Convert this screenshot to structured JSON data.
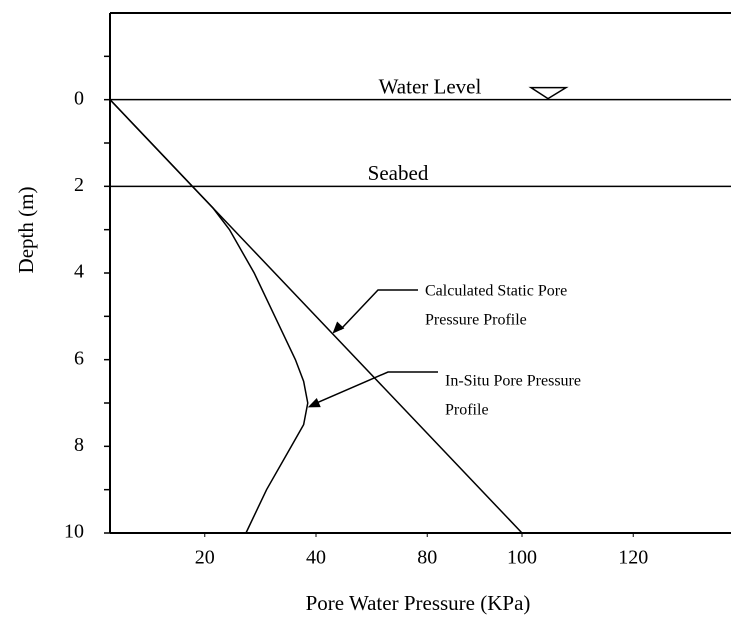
{
  "chart_data": {
    "type": "line",
    "xlabel": "Pore Water Pressure (KPa)",
    "ylabel": "Depth (m)",
    "xlim": [
      0,
      150
    ],
    "ylim": [
      -2,
      10
    ],
    "y_inverted": true,
    "xticks": [
      {
        "value": 23,
        "label": "20"
      },
      {
        "value": 50,
        "label": "40"
      },
      {
        "value": 77,
        "label": "80"
      },
      {
        "value": 100,
        "label": "100"
      },
      {
        "value": 127,
        "label": "120"
      }
    ],
    "yticks": [
      0,
      2,
      4,
      6,
      8,
      10
    ],
    "yminorticks": [
      -1,
      1,
      3,
      5,
      7,
      9
    ],
    "series": [
      {
        "name": "Calculated Static Pore Pressure Profile",
        "color": "#000000",
        "x": [
          0,
          100
        ],
        "values": [
          0,
          10
        ]
      },
      {
        "name": "In-Situ Pore Pressure Profile",
        "color": "#000000",
        "x": [
          0,
          20,
          25,
          29,
          35,
          40,
          45,
          47,
          48,
          47,
          44,
          38,
          33
        ],
        "values": [
          0,
          2,
          2.5,
          3,
          4,
          5,
          6,
          6.5,
          7,
          7.5,
          8,
          9,
          10
        ]
      }
    ],
    "levels": [
      {
        "label": "Water Level",
        "depth": 0
      },
      {
        "label": "Seabed",
        "depth": 2
      }
    ],
    "annotations": [
      {
        "lines": [
          "Calculated Static Pore",
          "Pressure Profile"
        ],
        "target": [
          54,
          5.4
        ]
      },
      {
        "lines": [
          "In-Situ Pore Pressure",
          "Profile"
        ],
        "target": [
          48,
          7.1
        ]
      }
    ]
  }
}
